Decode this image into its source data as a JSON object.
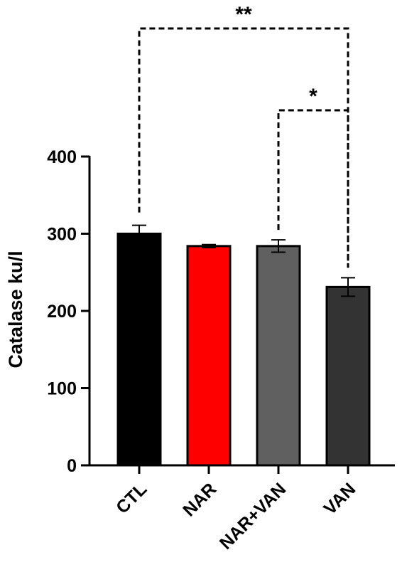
{
  "chart_data": {
    "type": "bar",
    "categories": [
      "CTL",
      "NAR",
      "NAR+VAN",
      "VAN"
    ],
    "values": [
      300,
      284,
      284,
      231
    ],
    "errors": [
      11,
      2,
      8,
      12
    ],
    "colors": [
      "#000000",
      "#ff0000",
      "#606060",
      "#333333"
    ],
    "ylabel": "Catalase ku/l",
    "xlabel": "",
    "title": "",
    "ylim": [
      0,
      400
    ],
    "yticks": [
      0,
      100,
      200,
      300,
      400
    ],
    "grid": false,
    "significance": [
      {
        "from": "CTL",
        "to": "VAN",
        "label": "**"
      },
      {
        "from": "NAR+VAN",
        "to": "VAN",
        "label": "*"
      }
    ]
  }
}
